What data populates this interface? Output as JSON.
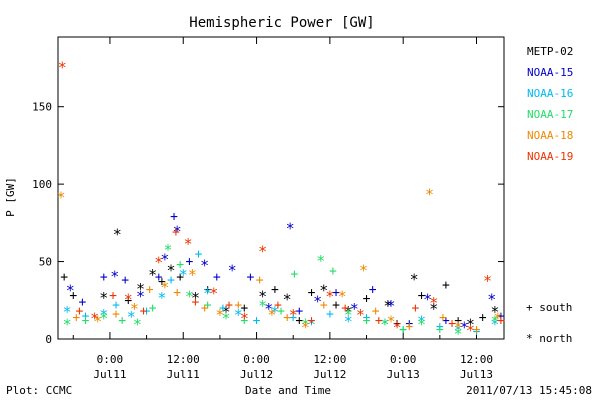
{
  "footer": {
    "left": "Plot: CCMC",
    "center": "Date and Time",
    "right": "2011/07/13 15:45:08"
  },
  "chart_data": {
    "type": "scatter",
    "title": "Hemispheric Power [GW]",
    "xlabel": "Date and Time",
    "ylabel": "P [GW]",
    "x_unit": "hours since 2011-07-11 00:00 UT",
    "xlim": [
      -8.5,
      64.5
    ],
    "ylim": [
      0,
      195
    ],
    "y_ticks": [
      0,
      50,
      100,
      150
    ],
    "x_ticks": [
      {
        "x": 0,
        "time": "0:00",
        "date": "Jul11"
      },
      {
        "x": 12,
        "time": "12:00",
        "date": "Jul11"
      },
      {
        "x": 24,
        "time": "0:00",
        "date": "Jul12"
      },
      {
        "x": 36,
        "time": "12:00",
        "date": "Jul12"
      },
      {
        "x": 48,
        "time": "0:00",
        "date": "Jul13"
      },
      {
        "x": 60,
        "time": "12:00",
        "date": "Jul13"
      }
    ],
    "legend_position": "right",
    "marker_legend": [
      {
        "symbol": "+",
        "label": "south"
      },
      {
        "symbol": "*",
        "label": "north"
      }
    ],
    "series": [
      {
        "name": "METP-02",
        "color": "#000000",
        "points": [
          {
            "x": -7.5,
            "y": 40,
            "hem": "south"
          },
          {
            "x": -6,
            "y": 28,
            "hem": "south"
          },
          {
            "x": -1,
            "y": 27,
            "hem": "north"
          },
          {
            "x": 1.2,
            "y": 68,
            "hem": "north"
          },
          {
            "x": 3,
            "y": 25,
            "hem": "south"
          },
          {
            "x": 5,
            "y": 33,
            "hem": "north"
          },
          {
            "x": 7,
            "y": 42,
            "hem": "north"
          },
          {
            "x": 8.5,
            "y": 37,
            "hem": "south"
          },
          {
            "x": 10,
            "y": 45,
            "hem": "north"
          },
          {
            "x": 11.5,
            "y": 40,
            "hem": "south"
          },
          {
            "x": 14,
            "y": 27,
            "hem": "north"
          },
          {
            "x": 16,
            "y": 32,
            "hem": "south"
          },
          {
            "x": 19,
            "y": 18,
            "hem": "north"
          },
          {
            "x": 22,
            "y": 20,
            "hem": "south"
          },
          {
            "x": 25,
            "y": 28,
            "hem": "north"
          },
          {
            "x": 27,
            "y": 32,
            "hem": "south"
          },
          {
            "x": 29,
            "y": 26,
            "hem": "north"
          },
          {
            "x": 31,
            "y": 12,
            "hem": "south"
          },
          {
            "x": 33,
            "y": 30,
            "hem": "south"
          },
          {
            "x": 35,
            "y": 32,
            "hem": "north"
          },
          {
            "x": 37,
            "y": 22,
            "hem": "south"
          },
          {
            "x": 39,
            "y": 18,
            "hem": "north"
          },
          {
            "x": 42,
            "y": 26,
            "hem": "south"
          },
          {
            "x": 45.5,
            "y": 22,
            "hem": "north"
          },
          {
            "x": 47,
            "y": 10,
            "hem": "south"
          },
          {
            "x": 49.8,
            "y": 39,
            "hem": "north"
          },
          {
            "x": 51,
            "y": 28,
            "hem": "south"
          },
          {
            "x": 53,
            "y": 20,
            "hem": "north"
          },
          {
            "x": 55,
            "y": 35,
            "hem": "south"
          },
          {
            "x": 57,
            "y": 12,
            "hem": "south"
          },
          {
            "x": 59,
            "y": 10,
            "hem": "north"
          },
          {
            "x": 61,
            "y": 14,
            "hem": "south"
          },
          {
            "x": 63,
            "y": 18,
            "hem": "north"
          }
        ]
      },
      {
        "name": "NOAA-15",
        "color": "#0000cc",
        "points": [
          {
            "x": -6.5,
            "y": 32,
            "hem": "north"
          },
          {
            "x": -4.5,
            "y": 24,
            "hem": "south"
          },
          {
            "x": -1,
            "y": 40,
            "hem": "south"
          },
          {
            "x": 0.8,
            "y": 41,
            "hem": "north"
          },
          {
            "x": 2.5,
            "y": 38,
            "hem": "south"
          },
          {
            "x": 5,
            "y": 28,
            "hem": "north"
          },
          {
            "x": 8,
            "y": 40,
            "hem": "south"
          },
          {
            "x": 9,
            "y": 52,
            "hem": "north"
          },
          {
            "x": 10.5,
            "y": 79,
            "hem": "south"
          },
          {
            "x": 11,
            "y": 70,
            "hem": "north"
          },
          {
            "x": 13,
            "y": 50,
            "hem": "south"
          },
          {
            "x": 15.5,
            "y": 48,
            "hem": "north"
          },
          {
            "x": 17.5,
            "y": 40,
            "hem": "south"
          },
          {
            "x": 20,
            "y": 45,
            "hem": "north"
          },
          {
            "x": 23,
            "y": 40,
            "hem": "south"
          },
          {
            "x": 26,
            "y": 20,
            "hem": "north"
          },
          {
            "x": 29.5,
            "y": 72,
            "hem": "north"
          },
          {
            "x": 31,
            "y": 18,
            "hem": "south"
          },
          {
            "x": 34,
            "y": 25,
            "hem": "north"
          },
          {
            "x": 37,
            "y": 30,
            "hem": "south"
          },
          {
            "x": 40,
            "y": 20,
            "hem": "north"
          },
          {
            "x": 43,
            "y": 32,
            "hem": "south"
          },
          {
            "x": 46,
            "y": 22,
            "hem": "north"
          },
          {
            "x": 49,
            "y": 10,
            "hem": "south"
          },
          {
            "x": 52,
            "y": 26,
            "hem": "north"
          },
          {
            "x": 55,
            "y": 12,
            "hem": "south"
          },
          {
            "x": 58,
            "y": 8,
            "hem": "north"
          },
          {
            "x": 62.5,
            "y": 26,
            "hem": "north"
          },
          {
            "x": 64,
            "y": 15,
            "hem": "south"
          }
        ]
      },
      {
        "name": "NOAA-16",
        "color": "#00bbee",
        "points": [
          {
            "x": -7,
            "y": 18,
            "hem": "north"
          },
          {
            "x": -4,
            "y": 15,
            "hem": "south"
          },
          {
            "x": -1,
            "y": 16,
            "hem": "north"
          },
          {
            "x": 1,
            "y": 22,
            "hem": "south"
          },
          {
            "x": 3.5,
            "y": 15,
            "hem": "north"
          },
          {
            "x": 6,
            "y": 18,
            "hem": "south"
          },
          {
            "x": 8.5,
            "y": 27,
            "hem": "north"
          },
          {
            "x": 10,
            "y": 38,
            "hem": "south"
          },
          {
            "x": 12,
            "y": 42,
            "hem": "north"
          },
          {
            "x": 14.5,
            "y": 55,
            "hem": "south"
          },
          {
            "x": 16,
            "y": 30,
            "hem": "north"
          },
          {
            "x": 18.5,
            "y": 20,
            "hem": "south"
          },
          {
            "x": 21,
            "y": 16,
            "hem": "north"
          },
          {
            "x": 24,
            "y": 12,
            "hem": "south"
          },
          {
            "x": 27,
            "y": 18,
            "hem": "north"
          },
          {
            "x": 30,
            "y": 14,
            "hem": "south"
          },
          {
            "x": 33,
            "y": 10,
            "hem": "north"
          },
          {
            "x": 36,
            "y": 16,
            "hem": "south"
          },
          {
            "x": 39,
            "y": 12,
            "hem": "north"
          },
          {
            "x": 42,
            "y": 14,
            "hem": "south"
          },
          {
            "x": 45,
            "y": 10,
            "hem": "north"
          },
          {
            "x": 48,
            "y": 6,
            "hem": "south"
          },
          {
            "x": 51,
            "y": 12,
            "hem": "north"
          },
          {
            "x": 54,
            "y": 8,
            "hem": "south"
          },
          {
            "x": 57,
            "y": 6,
            "hem": "north"
          },
          {
            "x": 60,
            "y": 5,
            "hem": "south"
          },
          {
            "x": 63,
            "y": 10,
            "hem": "north"
          }
        ]
      },
      {
        "name": "NOAA-17",
        "color": "#22dd66",
        "points": [
          {
            "x": -7,
            "y": 10,
            "hem": "north"
          },
          {
            "x": -4,
            "y": 12,
            "hem": "south"
          },
          {
            "x": -1,
            "y": 14,
            "hem": "north"
          },
          {
            "x": 2,
            "y": 12,
            "hem": "south"
          },
          {
            "x": 4.5,
            "y": 10,
            "hem": "north"
          },
          {
            "x": 7,
            "y": 20,
            "hem": "south"
          },
          {
            "x": 9.5,
            "y": 58,
            "hem": "north"
          },
          {
            "x": 11.5,
            "y": 48,
            "hem": "south"
          },
          {
            "x": 13,
            "y": 28,
            "hem": "north"
          },
          {
            "x": 16,
            "y": 22,
            "hem": "south"
          },
          {
            "x": 19,
            "y": 14,
            "hem": "north"
          },
          {
            "x": 22,
            "y": 12,
            "hem": "south"
          },
          {
            "x": 25,
            "y": 22,
            "hem": "north"
          },
          {
            "x": 28,
            "y": 18,
            "hem": "south"
          },
          {
            "x": 30.2,
            "y": 42,
            "hem": "south"
          },
          {
            "x": 32,
            "y": 10,
            "hem": "north"
          },
          {
            "x": 34.5,
            "y": 51,
            "hem": "north"
          },
          {
            "x": 36.5,
            "y": 44,
            "hem": "south"
          },
          {
            "x": 39,
            "y": 16,
            "hem": "north"
          },
          {
            "x": 42,
            "y": 12,
            "hem": "south"
          },
          {
            "x": 45,
            "y": 10,
            "hem": "north"
          },
          {
            "x": 48,
            "y": 6,
            "hem": "south"
          },
          {
            "x": 51,
            "y": 10,
            "hem": "north"
          },
          {
            "x": 54,
            "y": 6,
            "hem": "south"
          },
          {
            "x": 57,
            "y": 4,
            "hem": "north"
          },
          {
            "x": 60,
            "y": 6,
            "hem": "south"
          },
          {
            "x": 63,
            "y": 12,
            "hem": "north"
          }
        ]
      },
      {
        "name": "NOAA-18",
        "color": "#ee8800",
        "points": [
          {
            "x": -8,
            "y": 92,
            "hem": "north"
          },
          {
            "x": -5.5,
            "y": 14,
            "hem": "south"
          },
          {
            "x": -2,
            "y": 12,
            "hem": "north"
          },
          {
            "x": 1,
            "y": 16,
            "hem": "south"
          },
          {
            "x": 4,
            "y": 20,
            "hem": "north"
          },
          {
            "x": 6.5,
            "y": 32,
            "hem": "south"
          },
          {
            "x": 9,
            "y": 34,
            "hem": "north"
          },
          {
            "x": 11,
            "y": 30,
            "hem": "south"
          },
          {
            "x": 13.5,
            "y": 42,
            "hem": "north"
          },
          {
            "x": 15.5,
            "y": 20,
            "hem": "south"
          },
          {
            "x": 18,
            "y": 16,
            "hem": "north"
          },
          {
            "x": 21,
            "y": 22,
            "hem": "south"
          },
          {
            "x": 24.5,
            "y": 38,
            "hem": "south"
          },
          {
            "x": 26.5,
            "y": 16,
            "hem": "north"
          },
          {
            "x": 29,
            "y": 14,
            "hem": "south"
          },
          {
            "x": 32,
            "y": 8,
            "hem": "north"
          },
          {
            "x": 35,
            "y": 22,
            "hem": "south"
          },
          {
            "x": 38,
            "y": 28,
            "hem": "north"
          },
          {
            "x": 41.5,
            "y": 45,
            "hem": "north"
          },
          {
            "x": 43.5,
            "y": 18,
            "hem": "south"
          },
          {
            "x": 46,
            "y": 12,
            "hem": "north"
          },
          {
            "x": 49,
            "y": 8,
            "hem": "south"
          },
          {
            "x": 52.3,
            "y": 94,
            "hem": "north"
          },
          {
            "x": 54.5,
            "y": 14,
            "hem": "south"
          },
          {
            "x": 57,
            "y": 8,
            "hem": "north"
          },
          {
            "x": 60,
            "y": 6,
            "hem": "south"
          },
          {
            "x": 63.5,
            "y": 14,
            "hem": "north"
          }
        ]
      },
      {
        "name": "NOAA-19",
        "color": "#ee3300",
        "points": [
          {
            "x": -7.8,
            "y": 176,
            "hem": "north"
          },
          {
            "x": -5,
            "y": 18,
            "hem": "south"
          },
          {
            "x": -2.5,
            "y": 14,
            "hem": "north"
          },
          {
            "x": 0.5,
            "y": 28,
            "hem": "south"
          },
          {
            "x": 3,
            "y": 26,
            "hem": "north"
          },
          {
            "x": 5.5,
            "y": 18,
            "hem": "south"
          },
          {
            "x": 8,
            "y": 50,
            "hem": "north"
          },
          {
            "x": 10.8,
            "y": 69,
            "hem": "south"
          },
          {
            "x": 12.8,
            "y": 62,
            "hem": "north"
          },
          {
            "x": 14,
            "y": 24,
            "hem": "south"
          },
          {
            "x": 17,
            "y": 30,
            "hem": "north"
          },
          {
            "x": 19.5,
            "y": 22,
            "hem": "south"
          },
          {
            "x": 22,
            "y": 14,
            "hem": "north"
          },
          {
            "x": 25,
            "y": 57,
            "hem": "north"
          },
          {
            "x": 27.5,
            "y": 22,
            "hem": "south"
          },
          {
            "x": 30,
            "y": 16,
            "hem": "north"
          },
          {
            "x": 33,
            "y": 12,
            "hem": "south"
          },
          {
            "x": 36,
            "y": 28,
            "hem": "north"
          },
          {
            "x": 38.5,
            "y": 20,
            "hem": "south"
          },
          {
            "x": 41,
            "y": 16,
            "hem": "north"
          },
          {
            "x": 44,
            "y": 12,
            "hem": "south"
          },
          {
            "x": 47,
            "y": 8,
            "hem": "north"
          },
          {
            "x": 50,
            "y": 20,
            "hem": "south"
          },
          {
            "x": 53,
            "y": 24,
            "hem": "north"
          },
          {
            "x": 56,
            "y": 10,
            "hem": "south"
          },
          {
            "x": 59,
            "y": 6,
            "hem": "north"
          },
          {
            "x": 61.8,
            "y": 38,
            "hem": "north"
          },
          {
            "x": 64,
            "y": 12,
            "hem": "south"
          }
        ]
      }
    ]
  }
}
